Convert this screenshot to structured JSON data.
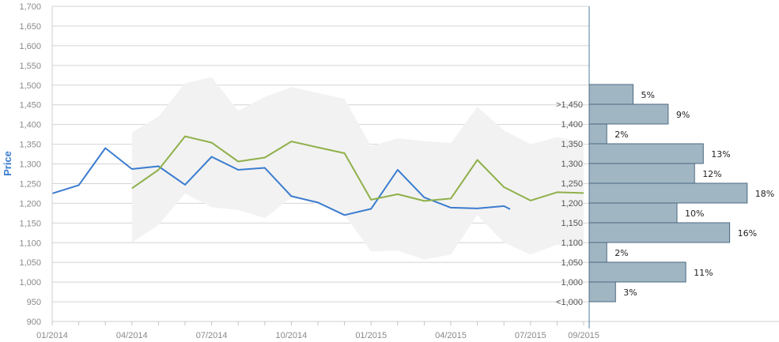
{
  "chart_data": {
    "type": "line",
    "ylabel": "Price",
    "xlabel": "",
    "title": "",
    "ylim": [
      900,
      1700
    ],
    "y_ticks": [
      900,
      950,
      1000,
      1050,
      1100,
      1150,
      1200,
      1250,
      1300,
      1350,
      1400,
      1450,
      1500,
      1550,
      1600,
      1650,
      1700
    ],
    "y_tick_labels": [
      "900",
      "950",
      "1,000",
      "1,050",
      "1,100",
      "1,150",
      "1,200",
      "1,250",
      "1,300",
      "1,350",
      "1,400",
      "1,450",
      "1,500",
      "1,550",
      "1,600",
      "1,650",
      "1,700"
    ],
    "x_ticks": [
      "01/2014",
      "04/2014",
      "07/2014",
      "10/2014",
      "01/2015",
      "04/2015",
      "07/2015",
      "09/2015"
    ],
    "grid": true,
    "series": [
      {
        "color": "#3a7ccf",
        "points": [
          [
            "2014-01",
            1225
          ],
          [
            "2014-02",
            1246
          ],
          [
            "2014-03",
            1340
          ],
          [
            "2014-04",
            1287
          ],
          [
            "2014-05",
            1294
          ],
          [
            "2014-06",
            1247
          ],
          [
            "2014-07",
            1318
          ],
          [
            "2014-08",
            1285
          ],
          [
            "2014-09",
            1290
          ],
          [
            "2014-10",
            1218
          ],
          [
            "2014-11",
            1202
          ],
          [
            "2014-12",
            1170
          ],
          [
            "2015-01",
            1186
          ],
          [
            "2015-02",
            1285
          ],
          [
            "2015-03",
            1215
          ],
          [
            "2015-04",
            1189
          ],
          [
            "2015-05",
            1187
          ],
          [
            "2015-06",
            1193
          ],
          [
            "2015-06-08",
            1185
          ]
        ]
      },
      {
        "color": "#8fb04a",
        "points": [
          [
            "2014-04",
            1238
          ],
          [
            "2014-05",
            1285
          ],
          [
            "2014-06",
            1370
          ],
          [
            "2014-07",
            1354
          ],
          [
            "2014-08",
            1306
          ],
          [
            "2014-09",
            1316
          ],
          [
            "2014-10",
            1357
          ],
          [
            "2014-11",
            1342
          ],
          [
            "2014-12",
            1327
          ],
          [
            "2015-01",
            1209
          ],
          [
            "2015-02",
            1223
          ],
          [
            "2015-03",
            1206
          ],
          [
            "2015-04",
            1212
          ],
          [
            "2015-05",
            1310
          ],
          [
            "2015-06",
            1241
          ],
          [
            "2015-07",
            1207
          ],
          [
            "2015-08",
            1228
          ],
          [
            "2015-09",
            1226
          ]
        ]
      }
    ],
    "range_band": {
      "color": "#f2f2f2",
      "months": [
        "2014-04",
        "2014-05",
        "2014-06",
        "2014-07",
        "2014-08",
        "2014-09",
        "2014-10",
        "2014-11",
        "2014-12",
        "2015-01",
        "2015-02",
        "2015-03",
        "2015-04",
        "2015-05",
        "2015-06",
        "2015-07",
        "2015-08",
        "2015-09"
      ],
      "high": [
        1380,
        1420,
        1505,
        1520,
        1435,
        1470,
        1495,
        1480,
        1465,
        1345,
        1365,
        1358,
        1353,
        1445,
        1385,
        1350,
        1368,
        1355
      ],
      "low": [
        1100,
        1145,
        1225,
        1190,
        1183,
        1162,
        1215,
        1197,
        1170,
        1078,
        1080,
        1057,
        1070,
        1170,
        1100,
        1070,
        1095,
        1090
      ]
    },
    "distribution": {
      "type": "bar",
      "color": "#a1b6c3",
      "bins": [
        {
          "label": "<1,000",
          "value": 3,
          "text": "3%"
        },
        {
          "label": "1,000",
          "value": 11,
          "text": "11%"
        },
        {
          "label": "1,050",
          "value": 2,
          "text": "2%"
        },
        {
          "label": "1,100",
          "value": 16,
          "text": "16%"
        },
        {
          "label": "1,150",
          "value": 10,
          "text": "10%"
        },
        {
          "label": "1,200",
          "value": 18,
          "text": "18%"
        },
        {
          "label": "1,250",
          "value": 12,
          "text": "12%"
        },
        {
          "label": "1,300",
          "value": 13,
          "text": "13%"
        },
        {
          "label": "1,350",
          "value": 2,
          "text": "2%"
        },
        {
          "label": "1,400",
          "value": 9,
          "text": "9%"
        },
        {
          "label": ">1,450",
          "value": 5,
          "text": "5%"
        }
      ]
    }
  }
}
